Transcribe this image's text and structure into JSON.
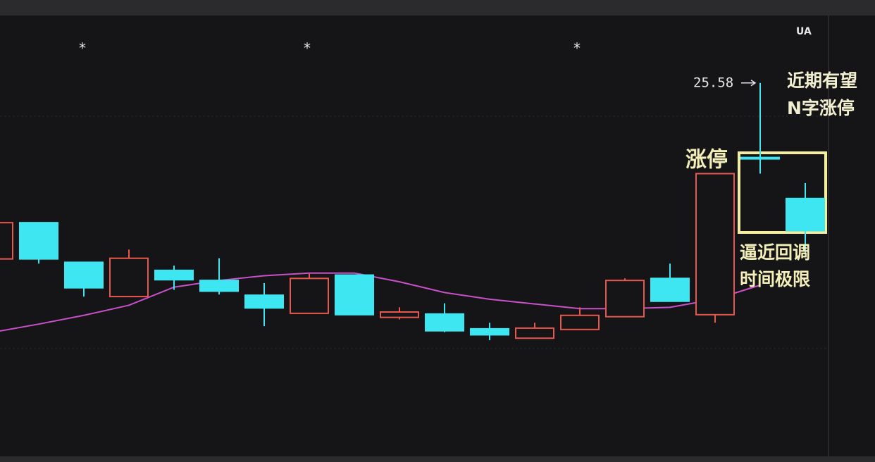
{
  "chart_data": {
    "type": "candlestick",
    "open": [
      22.96,
      23.5,
      22.91,
      22.4,
      22.79,
      22.64,
      22.42,
      22.15,
      22.72,
      22.09,
      22.14,
      21.92,
      21.78,
      21.91,
      22.1,
      22.67,
      22.13,
      24.47,
      23.86
    ],
    "high": [
      23.5,
      23.5,
      22.91,
      23.1,
      22.86,
      22.97,
      22.6,
      22.74,
      22.72,
      22.24,
      22.3,
      22.01,
      22.01,
      22.24,
      22.67,
      22.89,
      24.23,
      25.58,
      24.09
    ],
    "low": [
      22.96,
      22.89,
      22.4,
      22.4,
      22.5,
      22.43,
      21.96,
      22.15,
      22.13,
      22.06,
      21.87,
      21.75,
      21.78,
      21.91,
      22.1,
      22.33,
      22.01,
      24.23,
      23.04
    ],
    "close": [
      23.5,
      22.96,
      22.53,
      22.97,
      22.65,
      22.48,
      22.23,
      22.67,
      22.13,
      22.17,
      21.89,
      21.83,
      21.93,
      22.12,
      22.64,
      22.33,
      24.23,
      24.45,
      23.38
    ],
    "ma": [
      21.87,
      21.99,
      22.12,
      22.27,
      22.54,
      22.64,
      22.71,
      22.75,
      22.75,
      22.62,
      22.46,
      22.36,
      22.29,
      22.22,
      22.22,
      22.24,
      22.36,
      22.57,
      null
    ],
    "up_color": "#e8574e",
    "down_color": "#3ee6f2",
    "ma_color": "#c850c8",
    "ylim": [
      20,
      26.5
    ],
    "stars": [
      "*",
      "*",
      "*"
    ],
    "corner_label": "UA",
    "annotations": [
      "涨停",
      "近期有望",
      "N字涨停",
      "逼近回调",
      "时间极限"
    ]
  }
}
